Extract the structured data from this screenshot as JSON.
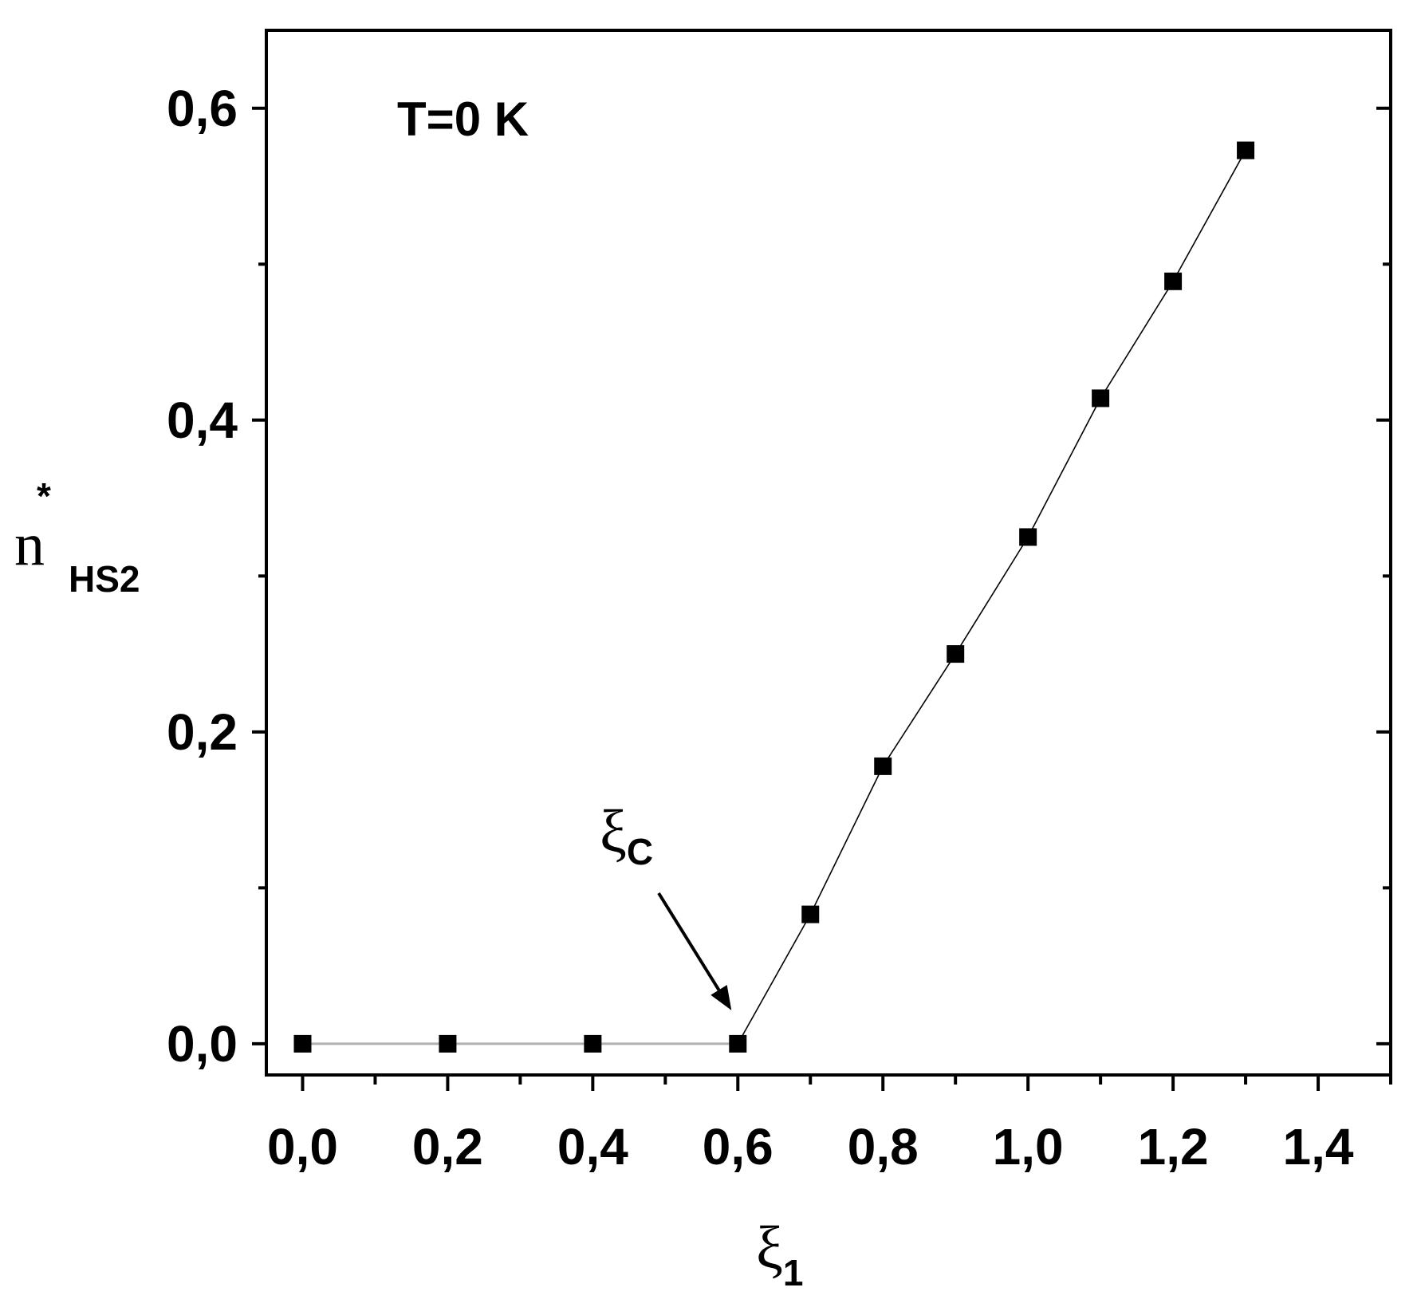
{
  "chart_data": {
    "type": "scatter",
    "title": "",
    "annotation": "T=0 K",
    "xlabel": {
      "main": "ξ",
      "sub": "1"
    },
    "ylabel": {
      "main": "n",
      "sup": "*",
      "sub": "HS2"
    },
    "critical_label": {
      "main": "ξ",
      "sub": "C"
    },
    "critical_x": 0.6,
    "xlim": [
      -0.05,
      1.5
    ],
    "ylim": [
      -0.02,
      0.65
    ],
    "xticks": [
      0.0,
      0.2,
      0.4,
      0.6,
      0.8,
      1.0,
      1.2,
      1.4
    ],
    "xtick_labels": [
      "0,0",
      "0,2",
      "0,4",
      "0,6",
      "0,8",
      "1,0",
      "1,2",
      "1,4"
    ],
    "x_minor_ticks": [
      0.1,
      0.3,
      0.5,
      0.7,
      0.9,
      1.1,
      1.3,
      1.5
    ],
    "yticks": [
      0.0,
      0.2,
      0.4,
      0.6
    ],
    "ytick_labels": [
      "0,0",
      "0,2",
      "0,4",
      "0,6"
    ],
    "y_minor_ticks": [
      0.1,
      0.3,
      0.5
    ],
    "grid": false,
    "series": [
      {
        "line_color_before_critical": "#b0b0b0",
        "line_color_after_critical": "#000000",
        "marker": "square",
        "marker_color": "#000000",
        "x": [
          0.0,
          0.2,
          0.4,
          0.6,
          0.7,
          0.8,
          0.9,
          1.0,
          1.1,
          1.2,
          1.3
        ],
        "y": [
          0.0,
          0.0,
          0.0,
          0.0,
          0.083,
          0.178,
          0.25,
          0.325,
          0.414,
          0.489,
          0.573
        ]
      }
    ]
  }
}
